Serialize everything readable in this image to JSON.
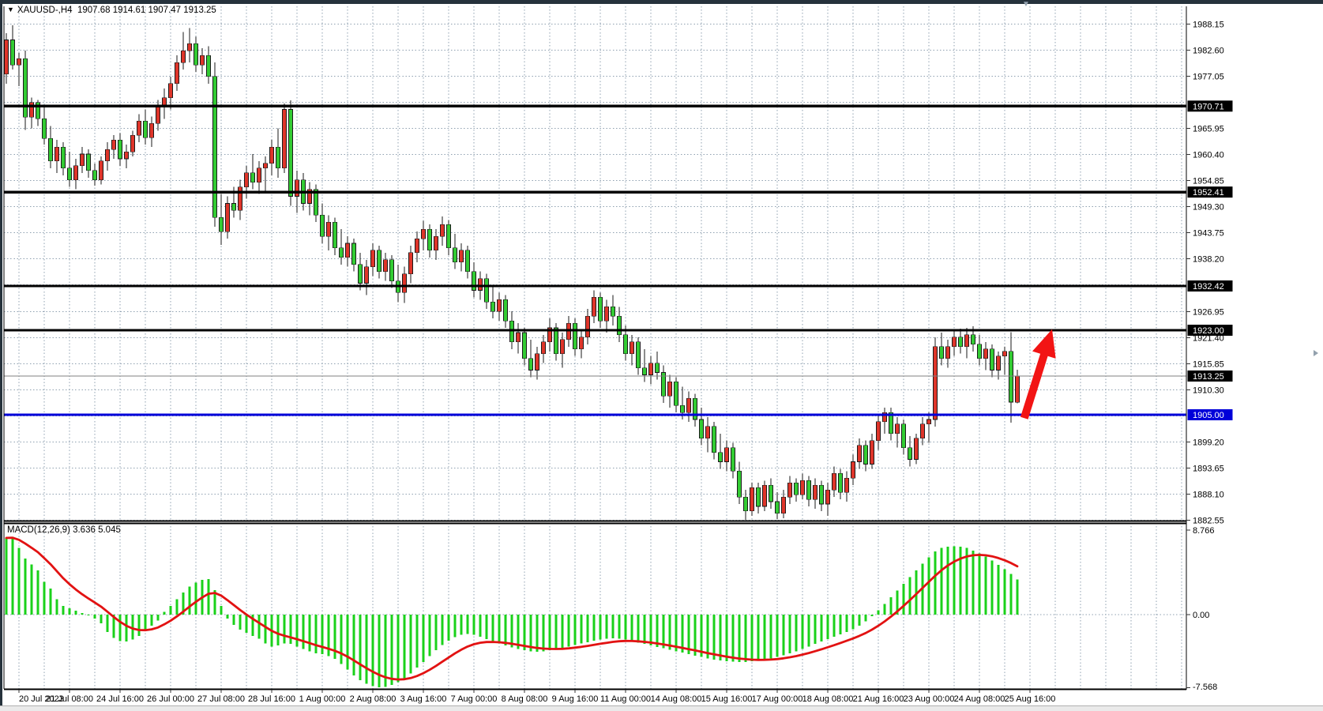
{
  "window": {
    "title": "XAUUSD-,H4  1907.68 1914.61 1907.47 1913.25",
    "symbol": "XAUUSD-",
    "timeframe": "H4",
    "dropdown_icon": "symbol-list-toggle"
  },
  "colors": {
    "bull": "#df352a",
    "bear": "#33cc33",
    "wick": "#1a1a1a",
    "grid": "#8fa0b0",
    "line_black": "#000000",
    "line_blue": "#0000d9",
    "bid_line": "#808080",
    "macd_hist": "#1ad11a",
    "macd_signal": "#e21212",
    "arrow": "#f21414",
    "axis_text": "#000000",
    "frame": "#26323c"
  },
  "chart_data": {
    "type": "candlestick",
    "title": "XAUUSD-,H4 1907.68 1914.61 1907.47 1913.25",
    "ohlc_current": {
      "open": "1907.68",
      "high": "1914.61",
      "low": "1907.47",
      "close": "1913.25"
    },
    "grid": true,
    "ylim": [
      1882.3,
      1989.6
    ],
    "price_ticks": [
      1988.15,
      1982.6,
      1977.05,
      1965.95,
      1960.4,
      1954.85,
      1949.3,
      1943.75,
      1938.2,
      1926.95,
      1921.4,
      1915.85,
      1910.3,
      1899.2,
      1893.65,
      1888.1,
      1882.55
    ],
    "grid_extra_levels": [
      1971.5,
      1932.65,
      1904.75
    ],
    "time_labels": [
      "20 Jul 2023",
      "21 Jul 08:00",
      "24 Jul 16:00",
      "26 Jul 00:00",
      "27 Jul 08:00",
      "28 Jul 16:00",
      "1 Aug 00:00",
      "2 Aug 08:00",
      "3 Aug 16:00",
      "7 Aug 00:00",
      "8 Aug 08:00",
      "9 Aug 16:00",
      "11 Aug 00:00",
      "14 Aug 08:00",
      "15 Aug 16:00",
      "17 Aug 00:00",
      "18 Aug 08:00",
      "21 Aug 16:00",
      "23 Aug 00:00",
      "24 Aug 08:00",
      "25 Aug 16:00"
    ],
    "tick_start_bar": 2,
    "tick_step_bars": 8,
    "minor_grid_step_bars": 4,
    "hlines": [
      {
        "price": 1970.71,
        "label": "1970.71",
        "color": "black"
      },
      {
        "price": 1952.41,
        "label": "1952.41",
        "color": "black"
      },
      {
        "price": 1932.42,
        "label": "1932.42",
        "color": "black"
      },
      {
        "price": 1923.0,
        "label": "1923.00",
        "color": "black"
      },
      {
        "price": 1905.0,
        "label": "1905.00",
        "color": "blue"
      }
    ],
    "bid_line": {
      "price": 1913.25,
      "label": "1913.25"
    },
    "arrow_annotation": {
      "from": {
        "bar": 161.1,
        "price": 1904.3
      },
      "to": {
        "bar": 165.5,
        "price": 1923.2
      }
    },
    "candles": [
      [
        1977.5,
        1986.2,
        1975.5,
        1984.8
      ],
      [
        1984.8,
        1987.9,
        1978.5,
        1979.5
      ],
      [
        1979.5,
        1982.0,
        1975.0,
        1980.8
      ],
      [
        1980.8,
        1982.5,
        1965.6,
        1968.4
      ],
      [
        1968.4,
        1972.5,
        1966.0,
        1971.5
      ],
      [
        1971.5,
        1972.0,
        1966.5,
        1968.0
      ],
      [
        1968.0,
        1970.5,
        1962.5,
        1963.8
      ],
      [
        1963.8,
        1966.5,
        1957.5,
        1959.0
      ],
      [
        1959.0,
        1963.5,
        1956.5,
        1962.0
      ],
      [
        1962.0,
        1963.0,
        1956.0,
        1957.5
      ],
      [
        1957.5,
        1961.0,
        1953.5,
        1955.0
      ],
      [
        1955.0,
        1959.5,
        1953.0,
        1958.0
      ],
      [
        1958.0,
        1962.0,
        1956.5,
        1960.5
      ],
      [
        1960.5,
        1961.5,
        1955.5,
        1957.0
      ],
      [
        1957.0,
        1958.5,
        1953.8,
        1955.0
      ],
      [
        1955.0,
        1960.0,
        1954.0,
        1959.0
      ],
      [
        1959.0,
        1963.0,
        1957.0,
        1961.5
      ],
      [
        1961.5,
        1964.5,
        1959.5,
        1963.5
      ],
      [
        1963.5,
        1965.0,
        1958.0,
        1959.5
      ],
      [
        1959.5,
        1962.5,
        1957.5,
        1961.0
      ],
      [
        1961.0,
        1965.5,
        1960.0,
        1964.5
      ],
      [
        1964.5,
        1969.0,
        1963.0,
        1967.5
      ],
      [
        1967.5,
        1970.0,
        1962.5,
        1964.0
      ],
      [
        1964.0,
        1968.5,
        1962.0,
        1967.0
      ],
      [
        1967.0,
        1972.0,
        1965.5,
        1970.5
      ],
      [
        1970.5,
        1974.5,
        1968.0,
        1972.5
      ],
      [
        1972.5,
        1977.0,
        1970.0,
        1975.5
      ],
      [
        1975.5,
        1981.5,
        1974.0,
        1980.0
      ],
      [
        1980.0,
        1986.5,
        1978.5,
        1982.5
      ],
      [
        1982.5,
        1987.3,
        1980.0,
        1984.0
      ],
      [
        1984.0,
        1985.5,
        1978.0,
        1979.5
      ],
      [
        1979.5,
        1983.0,
        1977.5,
        1981.5
      ],
      [
        1981.5,
        1983.5,
        1975.5,
        1977.0
      ],
      [
        1977.0,
        1980.0,
        1945.0,
        1947.0
      ],
      [
        1947.0,
        1952.0,
        1941.2,
        1944.0
      ],
      [
        1944.0,
        1951.5,
        1942.5,
        1950.0
      ],
      [
        1950.0,
        1953.5,
        1947.0,
        1948.5
      ],
      [
        1948.5,
        1955.0,
        1946.5,
        1953.5
      ],
      [
        1953.5,
        1958.0,
        1951.0,
        1956.5
      ],
      [
        1956.5,
        1960.5,
        1953.0,
        1954.5
      ],
      [
        1954.5,
        1959.0,
        1952.0,
        1957.5
      ],
      [
        1957.5,
        1960.0,
        1952.5,
        1958.5
      ],
      [
        1958.5,
        1963.5,
        1956.0,
        1962.0
      ],
      [
        1962.0,
        1966.0,
        1955.5,
        1957.5
      ],
      [
        1957.5,
        1971.3,
        1956.5,
        1970.0
      ],
      [
        1970.0,
        1971.9,
        1949.5,
        1951.5
      ],
      [
        1951.5,
        1957.0,
        1948.0,
        1955.0
      ],
      [
        1955.0,
        1956.5,
        1948.5,
        1950.0
      ],
      [
        1950.0,
        1954.5,
        1947.5,
        1953.0
      ],
      [
        1953.0,
        1954.0,
        1946.0,
        1947.5
      ],
      [
        1947.5,
        1950.0,
        1941.5,
        1943.0
      ],
      [
        1943.0,
        1947.5,
        1940.0,
        1946.0
      ],
      [
        1946.0,
        1947.0,
        1939.0,
        1940.5
      ],
      [
        1940.5,
        1944.5,
        1937.0,
        1938.5
      ],
      [
        1938.5,
        1943.0,
        1936.5,
        1941.5
      ],
      [
        1941.5,
        1942.5,
        1935.5,
        1937.0
      ],
      [
        1937.0,
        1939.5,
        1931.5,
        1933.0
      ],
      [
        1933.0,
        1938.0,
        1930.5,
        1936.5
      ],
      [
        1936.5,
        1941.5,
        1934.5,
        1940.0
      ],
      [
        1940.0,
        1941.0,
        1934.0,
        1935.5
      ],
      [
        1935.5,
        1939.5,
        1933.5,
        1938.0
      ],
      [
        1938.0,
        1939.0,
        1932.0,
        1933.5
      ],
      [
        1933.5,
        1937.0,
        1929.0,
        1931.0
      ],
      [
        1931.0,
        1936.5,
        1928.8,
        1935.0
      ],
      [
        1935.0,
        1941.0,
        1933.0,
        1939.5
      ],
      [
        1939.5,
        1944.0,
        1937.5,
        1942.5
      ],
      [
        1942.5,
        1946.3,
        1940.0,
        1944.5
      ],
      [
        1944.5,
        1945.5,
        1938.5,
        1940.0
      ],
      [
        1940.0,
        1944.5,
        1938.0,
        1943.0
      ],
      [
        1943.0,
        1947.2,
        1941.0,
        1945.5
      ],
      [
        1945.5,
        1946.5,
        1939.0,
        1940.5
      ],
      [
        1940.5,
        1943.5,
        1936.0,
        1937.5
      ],
      [
        1937.5,
        1941.5,
        1935.5,
        1940.0
      ],
      [
        1940.0,
        1941.0,
        1934.0,
        1935.5
      ],
      [
        1935.5,
        1937.5,
        1930.0,
        1931.5
      ],
      [
        1931.5,
        1935.5,
        1929.5,
        1934.0
      ],
      [
        1934.0,
        1935.0,
        1927.5,
        1929.0
      ],
      [
        1929.0,
        1932.5,
        1925.5,
        1927.0
      ],
      [
        1927.0,
        1931.0,
        1925.0,
        1929.5
      ],
      [
        1929.5,
        1930.5,
        1923.5,
        1925.0
      ],
      [
        1925.0,
        1927.0,
        1919.0,
        1920.5
      ],
      [
        1920.5,
        1924.5,
        1918.0,
        1922.5
      ],
      [
        1922.5,
        1923.5,
        1915.5,
        1917.0
      ],
      [
        1917.0,
        1921.0,
        1913.0,
        1914.5
      ],
      [
        1914.5,
        1919.5,
        1912.5,
        1918.0
      ],
      [
        1918.0,
        1922.0,
        1916.0,
        1920.5
      ],
      [
        1920.5,
        1925.5,
        1918.5,
        1923.5
      ],
      [
        1923.5,
        1924.5,
        1916.5,
        1918.0
      ],
      [
        1918.0,
        1922.5,
        1915.0,
        1921.0
      ],
      [
        1921.0,
        1926.0,
        1919.5,
        1924.5
      ],
      [
        1924.5,
        1925.5,
        1917.5,
        1919.0
      ],
      [
        1919.0,
        1923.0,
        1917.0,
        1921.5
      ],
      [
        1921.5,
        1927.5,
        1920.0,
        1926.0
      ],
      [
        1926.0,
        1931.5,
        1924.5,
        1930.0
      ],
      [
        1930.0,
        1931.0,
        1923.5,
        1925.0
      ],
      [
        1925.0,
        1929.5,
        1922.5,
        1928.0
      ],
      [
        1928.0,
        1930.5,
        1924.0,
        1926.0
      ],
      [
        1926.0,
        1928.0,
        1920.5,
        1922.0
      ],
      [
        1922.0,
        1924.0,
        1916.5,
        1918.0
      ],
      [
        1918.0,
        1922.0,
        1915.5,
        1920.5
      ],
      [
        1920.5,
        1921.5,
        1913.5,
        1915.0
      ],
      [
        1915.0,
        1919.0,
        1912.0,
        1913.5
      ],
      [
        1913.5,
        1917.5,
        1911.5,
        1916.0
      ],
      [
        1916.0,
        1918.5,
        1912.5,
        1914.0
      ],
      [
        1914.0,
        1915.5,
        1907.5,
        1909.0
      ],
      [
        1909.0,
        1913.5,
        1906.5,
        1912.0
      ],
      [
        1912.0,
        1913.0,
        1905.5,
        1907.0
      ],
      [
        1907.0,
        1911.0,
        1904.0,
        1905.5
      ],
      [
        1905.5,
        1910.0,
        1903.5,
        1908.5
      ],
      [
        1908.5,
        1909.5,
        1902.5,
        1904.0
      ],
      [
        1904.0,
        1906.5,
        1898.5,
        1900.0
      ],
      [
        1900.0,
        1904.5,
        1897.0,
        1902.5
      ],
      [
        1902.5,
        1903.5,
        1895.5,
        1897.0
      ],
      [
        1897.0,
        1901.0,
        1893.5,
        1895.0
      ],
      [
        1895.0,
        1899.5,
        1893.0,
        1898.0
      ],
      [
        1898.0,
        1899.0,
        1891.5,
        1893.0
      ],
      [
        1893.0,
        1895.0,
        1886.0,
        1887.5
      ],
      [
        1887.5,
        1889.0,
        1882.6,
        1884.5
      ],
      [
        1884.5,
        1890.5,
        1883.5,
        1889.5
      ],
      [
        1889.5,
        1890.5,
        1884.0,
        1885.5
      ],
      [
        1885.5,
        1891.0,
        1884.5,
        1890.0
      ],
      [
        1890.0,
        1891.5,
        1885.0,
        1886.5
      ],
      [
        1886.5,
        1888.5,
        1882.8,
        1884.0
      ],
      [
        1884.0,
        1889.0,
        1883.0,
        1887.5
      ],
      [
        1887.5,
        1892.0,
        1886.0,
        1890.5
      ],
      [
        1890.5,
        1891.5,
        1886.5,
        1888.0
      ],
      [
        1888.0,
        1892.5,
        1887.0,
        1891.0
      ],
      [
        1891.0,
        1892.0,
        1885.5,
        1887.0
      ],
      [
        1887.0,
        1891.5,
        1885.0,
        1890.0
      ],
      [
        1890.0,
        1891.0,
        1884.5,
        1886.0
      ],
      [
        1886.0,
        1890.5,
        1883.5,
        1889.0
      ],
      [
        1889.0,
        1894.0,
        1887.5,
        1892.5
      ],
      [
        1892.5,
        1893.5,
        1887.0,
        1888.5
      ],
      [
        1888.5,
        1893.0,
        1886.5,
        1891.5
      ],
      [
        1891.5,
        1896.5,
        1890.0,
        1895.0
      ],
      [
        1895.0,
        1900.0,
        1893.5,
        1898.5
      ],
      [
        1898.5,
        1899.5,
        1893.0,
        1894.5
      ],
      [
        1894.5,
        1901.0,
        1893.5,
        1899.5
      ],
      [
        1899.5,
        1905.0,
        1897.5,
        1903.5
      ],
      [
        1903.5,
        1906.5,
        1901.0,
        1905.5
      ],
      [
        1905.5,
        1906.5,
        1899.5,
        1901.0
      ],
      [
        1901.0,
        1904.5,
        1898.0,
        1903.0
      ],
      [
        1903.0,
        1904.0,
        1896.5,
        1898.0
      ],
      [
        1898.0,
        1900.5,
        1894.0,
        1895.5
      ],
      [
        1895.5,
        1901.0,
        1894.5,
        1900.0
      ],
      [
        1900.0,
        1904.5,
        1898.5,
        1903.0
      ],
      [
        1903.0,
        1905.5,
        1899.0,
        1904.0
      ],
      [
        1904.0,
        1921.5,
        1902.5,
        1919.5
      ],
      [
        1919.5,
        1922.5,
        1915.5,
        1917.0
      ],
      [
        1917.0,
        1921.0,
        1915.0,
        1919.5
      ],
      [
        1919.5,
        1923.0,
        1917.5,
        1921.5
      ],
      [
        1921.5,
        1923.3,
        1918.0,
        1919.5
      ],
      [
        1919.5,
        1923.5,
        1917.0,
        1922.0
      ],
      [
        1922.0,
        1923.8,
        1918.5,
        1920.0
      ],
      [
        1920.0,
        1922.0,
        1915.5,
        1917.0
      ],
      [
        1917.0,
        1920.5,
        1914.5,
        1919.0
      ],
      [
        1919.0,
        1920.0,
        1913.0,
        1914.5
      ],
      [
        1914.5,
        1918.5,
        1912.5,
        1917.5
      ],
      [
        1917.5,
        1919.5,
        1913.5,
        1918.5
      ],
      [
        1918.5,
        1922.6,
        1903.3,
        1907.7
      ],
      [
        1907.68,
        1914.61,
        1907.47,
        1913.25
      ]
    ],
    "macd": {
      "name": "MACD(12,26,9)",
      "value_main": "3.636",
      "value_signal": "5.045",
      "signal_period": 9,
      "ylim": [
        -7.7,
        9.5
      ],
      "axis_ticks": [
        {
          "v": 8.766,
          "label": "8.766"
        },
        {
          "v": 0,
          "label": "0.00"
        },
        {
          "v": -7.568,
          "label": "-7.568"
        }
      ],
      "histogram": [
        7.95,
        8.05,
        6.9,
        5.8,
        5.2,
        4.6,
        3.4,
        2.7,
        1.6,
        0.9,
        0.65,
        0.4,
        0.15,
        -0.1,
        -0.4,
        -0.9,
        -1.8,
        -2.4,
        -2.75,
        -2.8,
        -2.6,
        -2.2,
        -1.7,
        -1.15,
        -0.6,
        0.3,
        0.9,
        1.6,
        2.3,
        2.9,
        3.3,
        3.6,
        3.7,
        2.55,
        0.9,
        -0.4,
        -1.05,
        -1.55,
        -1.9,
        -2.2,
        -2.5,
        -3.0,
        -3.3,
        -3.2,
        -3.0,
        -3.05,
        -3.3,
        -3.55,
        -3.8,
        -4.0,
        -4.1,
        -4.3,
        -4.6,
        -5.1,
        -5.7,
        -6.3,
        -6.8,
        -7.15,
        -7.4,
        -7.55,
        -7.5,
        -7.3,
        -7.0,
        -6.6,
        -6.1,
        -5.5,
        -4.9,
        -4.3,
        -3.7,
        -3.15,
        -2.7,
        -2.35,
        -2.1,
        -2.0,
        -2.1,
        -2.3,
        -2.55,
        -2.8,
        -3.0,
        -3.2,
        -3.4,
        -3.55,
        -3.7,
        -3.8,
        -3.85,
        -3.8,
        -3.7,
        -3.6,
        -3.45,
        -3.3,
        -3.15,
        -3.0,
        -2.85,
        -2.7,
        -2.6,
        -2.5,
        -2.45,
        -2.5,
        -2.6,
        -2.75,
        -2.9,
        -3.05,
        -3.2,
        -3.35,
        -3.5,
        -3.65,
        -3.8,
        -3.95,
        -4.1,
        -4.25,
        -4.4,
        -4.55,
        -4.65,
        -4.75,
        -4.82,
        -4.88,
        -4.9,
        -4.9,
        -4.85,
        -4.78,
        -4.68,
        -4.55,
        -4.4,
        -4.2,
        -4.0,
        -3.8,
        -3.55,
        -3.3,
        -3.05,
        -2.8,
        -2.55,
        -2.3,
        -2.05,
        -1.8,
        -1.5,
        -1.15,
        -0.7,
        -0.15,
        0.45,
        1.1,
        1.8,
        2.5,
        3.2,
        3.9,
        4.6,
        5.3,
        5.95,
        6.55,
        6.9,
        7.05,
        7.1,
        7.05,
        6.9,
        6.65,
        6.35,
        6.0,
        5.6,
        5.15,
        4.7,
        4.2,
        3.64
      ]
    }
  }
}
